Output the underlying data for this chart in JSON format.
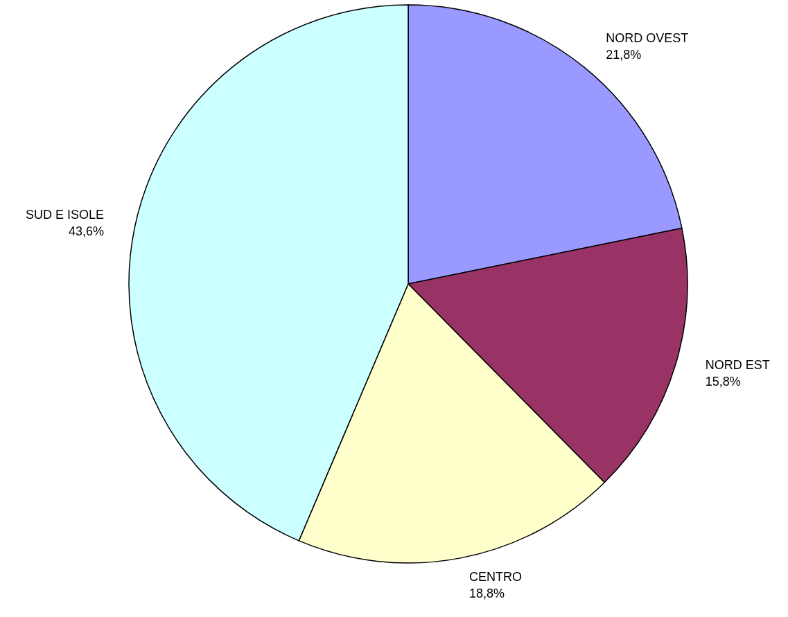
{
  "chart_data": {
    "type": "pie",
    "categories": [
      "NORD OVEST",
      "NORD EST",
      "CENTRO",
      "SUD E ISOLE"
    ],
    "values": [
      21.8,
      15.8,
      18.8,
      43.6
    ],
    "value_labels": [
      "21,8%",
      "15,8%",
      "18,8%",
      "43,6%"
    ],
    "colors": [
      "#9999ff",
      "#993366",
      "#ffffcc",
      "#ccffff"
    ],
    "legend": false
  }
}
